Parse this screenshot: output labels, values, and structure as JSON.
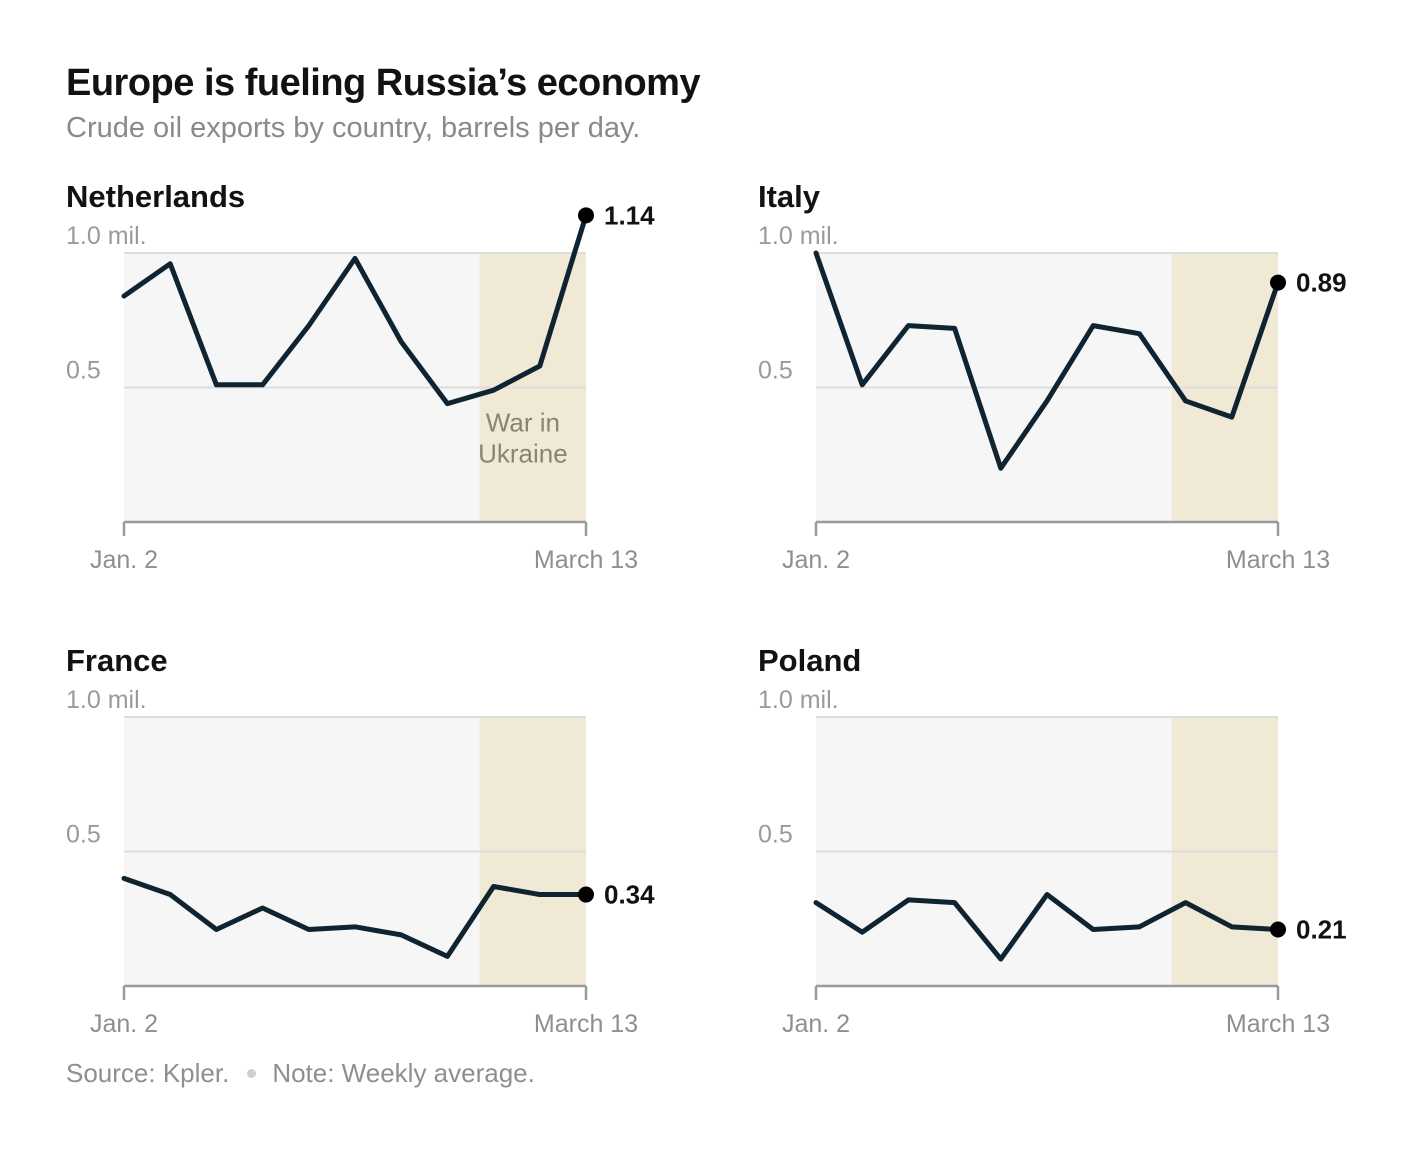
{
  "title": "Europe is fueling Russia’s economy",
  "subtitle": "Crude oil exports by country, barrels per day.",
  "footer": {
    "source": "Source: Kpler.",
    "note": "Note: Weekly average."
  },
  "colors": {
    "line": "#0f2430",
    "war_shade": "#efe9d5",
    "plot_bg": "#f6f6f6",
    "grid": "#dddddd"
  },
  "chart_data": [
    {
      "type": "line",
      "title": "Netherlands",
      "unit_label": "1.0 mil.",
      "y_ticks": [
        0.5,
        1.0
      ],
      "y_tick_labels": [
        "0.5",
        "1.0 mil."
      ],
      "ylim": [
        0,
        1.0
      ],
      "x_labels": [
        "Jan. 2",
        "March 13"
      ],
      "x": [
        1,
        2,
        3,
        4,
        5,
        6,
        7,
        8,
        9,
        10,
        11
      ],
      "values": [
        0.84,
        0.96,
        0.51,
        0.51,
        0.73,
        0.98,
        0.67,
        0.44,
        0.49,
        0.58,
        1.14
      ],
      "end_label": "1.14",
      "war_start_x": 8.7,
      "annotation": [
        "War in",
        "Ukraine"
      ],
      "grid": true
    },
    {
      "type": "line",
      "title": "Italy",
      "unit_label": "1.0 mil.",
      "y_ticks": [
        0.5,
        1.0
      ],
      "y_tick_labels": [
        "0.5",
        "1.0 mil."
      ],
      "ylim": [
        0,
        1.0
      ],
      "x_labels": [
        "Jan. 2",
        "March 13"
      ],
      "x": [
        1,
        2,
        3,
        4,
        5,
        6,
        7,
        8,
        9,
        10,
        11
      ],
      "values": [
        1.0,
        0.51,
        0.73,
        0.72,
        0.2,
        0.45,
        0.73,
        0.7,
        0.45,
        0.39,
        0.89
      ],
      "end_label": "0.89",
      "war_start_x": 8.7,
      "grid": true
    },
    {
      "type": "line",
      "title": "France",
      "unit_label": "1.0 mil.",
      "y_ticks": [
        0.5,
        1.0
      ],
      "y_tick_labels": [
        "0.5",
        "1.0 mil."
      ],
      "ylim": [
        0,
        1.0
      ],
      "x_labels": [
        "Jan. 2",
        "March 13"
      ],
      "x": [
        1,
        2,
        3,
        4,
        5,
        6,
        7,
        8,
        9,
        10,
        11
      ],
      "values": [
        0.4,
        0.34,
        0.21,
        0.29,
        0.21,
        0.22,
        0.19,
        0.11,
        0.37,
        0.34,
        0.34
      ],
      "end_label": "0.34",
      "war_start_x": 8.7,
      "grid": true
    },
    {
      "type": "line",
      "title": "Poland",
      "unit_label": "1.0 mil.",
      "y_ticks": [
        0.5,
        1.0
      ],
      "y_tick_labels": [
        "0.5",
        "1.0 mil."
      ],
      "ylim": [
        0,
        1.0
      ],
      "x_labels": [
        "Jan. 2",
        "March 13"
      ],
      "x": [
        1,
        2,
        3,
        4,
        5,
        6,
        7,
        8,
        9,
        10,
        11
      ],
      "values": [
        0.31,
        0.2,
        0.32,
        0.31,
        0.1,
        0.34,
        0.21,
        0.22,
        0.31,
        0.22,
        0.21
      ],
      "end_label": "0.21",
      "war_start_x": 8.7,
      "grid": true
    }
  ]
}
